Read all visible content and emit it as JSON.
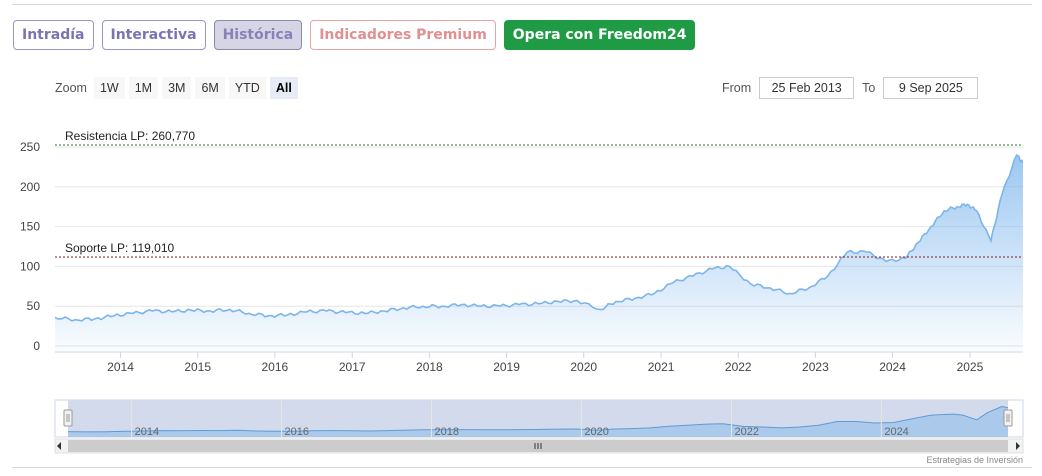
{
  "tabs": [
    {
      "label": "Intradía",
      "style": "normal"
    },
    {
      "label": "Interactiva",
      "style": "normal"
    },
    {
      "label": "Histórica",
      "style": "active"
    },
    {
      "label": "Indicadores Premium",
      "style": "premium"
    },
    {
      "label": "Opera con Freedom24",
      "style": "freedom"
    }
  ],
  "zoom": {
    "label": "Zoom",
    "buttons": [
      "1W",
      "1M",
      "3M",
      "6M",
      "YTD",
      "All"
    ],
    "active": "All"
  },
  "range": {
    "from_label": "From",
    "from_value": "25 Feb 2013",
    "to_label": "To",
    "to_value": "9 Sep 2025"
  },
  "credit": "Estrategias de Inversión",
  "colors": {
    "series_line": "#7cb5ec",
    "resistance_line": "#2a7a2a",
    "support_line": "#8b1a1a",
    "navigator_mask": "#d0d8ea"
  },
  "chart_data": {
    "type": "area",
    "x_axis_type": "date",
    "ylim": [
      0,
      260
    ],
    "y_ticks": [
      0,
      50,
      100,
      150,
      200,
      250
    ],
    "x_ticks": [
      "2014",
      "2015",
      "2016",
      "2017",
      "2018",
      "2019",
      "2020",
      "2021",
      "2022",
      "2023",
      "2024",
      "2025"
    ],
    "grid": true,
    "annotations": [
      {
        "label": "Resistencia LP: 260,770",
        "value": 260.77,
        "kind": "resistance"
      },
      {
        "label": "Soporte LP: 119,010",
        "value": 119.01,
        "kind": "support"
      }
    ],
    "x": [
      "2013-02-25",
      "2013-06-01",
      "2013-09-01",
      "2013-12-01",
      "2014-03-01",
      "2014-06-01",
      "2014-09-01",
      "2014-12-01",
      "2015-03-01",
      "2015-06-01",
      "2015-09-01",
      "2015-12-01",
      "2016-03-01",
      "2016-06-01",
      "2016-09-01",
      "2016-12-01",
      "2017-03-01",
      "2017-06-01",
      "2017-09-01",
      "2017-12-01",
      "2018-03-01",
      "2018-06-01",
      "2018-09-01",
      "2018-12-01",
      "2019-03-01",
      "2019-06-01",
      "2019-09-01",
      "2019-12-01",
      "2020-03-20",
      "2020-06-01",
      "2020-09-01",
      "2020-12-01",
      "2021-03-01",
      "2021-06-01",
      "2021-09-01",
      "2021-11-20",
      "2022-03-01",
      "2022-06-01",
      "2022-09-01",
      "2022-12-01",
      "2023-03-01",
      "2023-06-01",
      "2023-09-01",
      "2023-12-01",
      "2024-03-01",
      "2024-05-01",
      "2024-07-01",
      "2024-09-01",
      "2024-11-01",
      "2024-12-20",
      "2025-02-01",
      "2025-04-10",
      "2025-06-01",
      "2025-08-10",
      "2025-09-09"
    ],
    "series": [
      {
        "values": [
          36,
          33,
          34,
          38,
          41,
          44,
          43,
          45,
          44,
          46,
          41,
          38,
          39,
          43,
          44,
          42,
          41,
          44,
          48,
          50,
          50,
          52,
          50,
          50,
          52,
          53,
          56,
          57,
          46,
          56,
          60,
          66,
          80,
          88,
          97,
          100,
          78,
          73,
          66,
          73,
          88,
          118,
          118,
          106,
          110,
          130,
          150,
          170,
          175,
          178,
          170,
          132,
          190,
          240,
          230
        ]
      }
    ]
  }
}
